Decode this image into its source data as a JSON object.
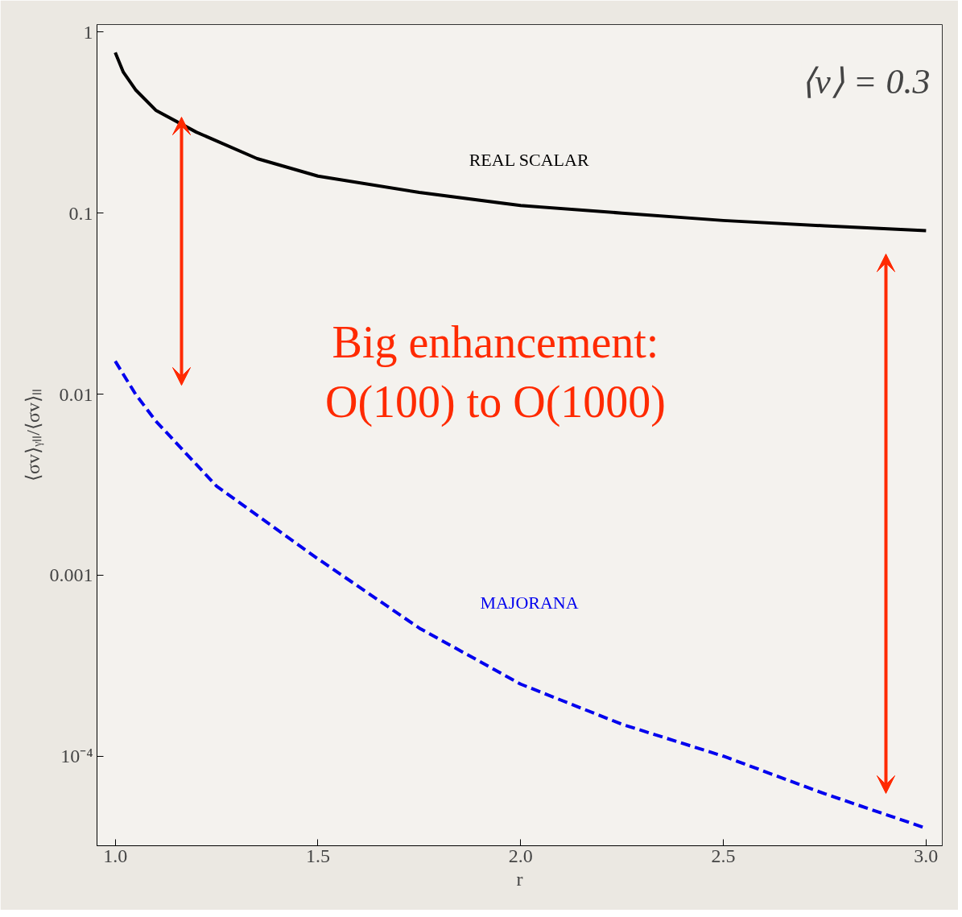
{
  "chart_data": {
    "type": "line",
    "log": "y",
    "xlabel": "r",
    "ylabel": "⟨σv⟩ᵧₗₗ/⟨σv⟩ₗₗ",
    "xlim": [
      0.955,
      3.04
    ],
    "ylim": [
      3.2e-05,
      1.1
    ],
    "xticks": [
      {
        "value": 1.0,
        "label": "1.0"
      },
      {
        "value": 1.5,
        "label": "1.5"
      },
      {
        "value": 2.0,
        "label": "2.0"
      },
      {
        "value": 2.5,
        "label": "2.5"
      },
      {
        "value": 3.0,
        "label": "3.0"
      }
    ],
    "yticks": [
      {
        "value": 0.0001,
        "label": "10⁻⁴"
      },
      0.001,
      0.01,
      0.1,
      1
    ],
    "grid": false,
    "legend": false,
    "marker": "none",
    "series": [
      {
        "name": "REAL SCALAR",
        "color": "#000000",
        "line_style": "solid",
        "x": [
          1.0,
          1.02,
          1.05,
          1.1,
          1.2,
          1.35,
          1.5,
          1.75,
          2.0,
          2.25,
          2.5,
          2.75,
          3.0
        ],
        "values": [
          0.77,
          0.6,
          0.48,
          0.37,
          0.28,
          0.2,
          0.16,
          0.13,
          0.11,
          0.1,
          0.091,
          0.085,
          0.08
        ]
      },
      {
        "name": "MAJORANA",
        "color": "#0000ee",
        "line_style": "dashed",
        "x": [
          1.0,
          1.05,
          1.1,
          1.25,
          1.5,
          1.75,
          2.0,
          2.25,
          2.5,
          2.75,
          3.0
        ],
        "values": [
          0.0152,
          0.01,
          0.0071,
          0.0031,
          0.00123,
          0.00051,
          0.00025,
          0.00015,
          0.0001,
          6.2e-05,
          4e-05
        ]
      }
    ],
    "annotations": [
      "⟨v⟩ = 0.3",
      "Big enhancement:\nO(100) to O(1000)"
    ]
  }
}
